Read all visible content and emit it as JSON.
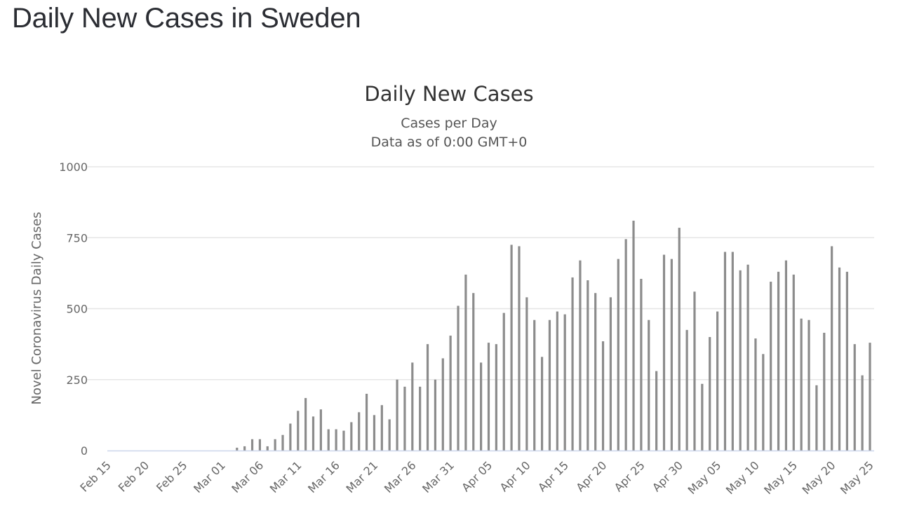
{
  "page": {
    "title": "Daily New Cases in Sweden"
  },
  "chart_data": {
    "type": "bar",
    "title": "Daily New Cases",
    "subtitle": [
      "Cases per Day",
      "Data as of 0:00 GMT+0"
    ],
    "xlabel": "",
    "ylabel": "Novel Coronavirus Daily Cases",
    "ylim": [
      0,
      1000
    ],
    "yticks": [
      0,
      250,
      500,
      750,
      1000
    ],
    "grid": true,
    "legend": "none",
    "bar_color": "#8c8c8c",
    "grid_color": "#e6e6e6",
    "axis_color": "#ccd6eb",
    "start_date": "Feb 15",
    "end_date": "May 25",
    "xtick_labels": [
      "Feb 15",
      "Feb 20",
      "Feb 25",
      "Mar 01",
      "Mar 06",
      "Mar 11",
      "Mar 16",
      "Mar 21",
      "Mar 26",
      "Mar 31",
      "Apr 05",
      "Apr 10",
      "Apr 15",
      "Apr 20",
      "Apr 25",
      "Apr 30",
      "May 05",
      "May 10",
      "May 15",
      "May 20",
      "May 25"
    ],
    "xtick_every_days": 5,
    "values": [
      0,
      0,
      0,
      0,
      0,
      0,
      0,
      0,
      0,
      0,
      0,
      0,
      0,
      0,
      0,
      0,
      0,
      10,
      15,
      40,
      40,
      15,
      40,
      55,
      95,
      140,
      185,
      120,
      145,
      75,
      75,
      70,
      100,
      135,
      200,
      125,
      160,
      110,
      250,
      225,
      310,
      225,
      375,
      250,
      325,
      405,
      510,
      620,
      555,
      310,
      380,
      375,
      485,
      725,
      720,
      540,
      460,
      330,
      460,
      490,
      480,
      610,
      670,
      600,
      555,
      385,
      540,
      675,
      745,
      810,
      605,
      460,
      280,
      690,
      675,
      785,
      425,
      560,
      235,
      400,
      490,
      700,
      700,
      635,
      655,
      395,
      340,
      595,
      630,
      670,
      620,
      465,
      460,
      230,
      415,
      720,
      645,
      630,
      375,
      265,
      380
    ]
  }
}
